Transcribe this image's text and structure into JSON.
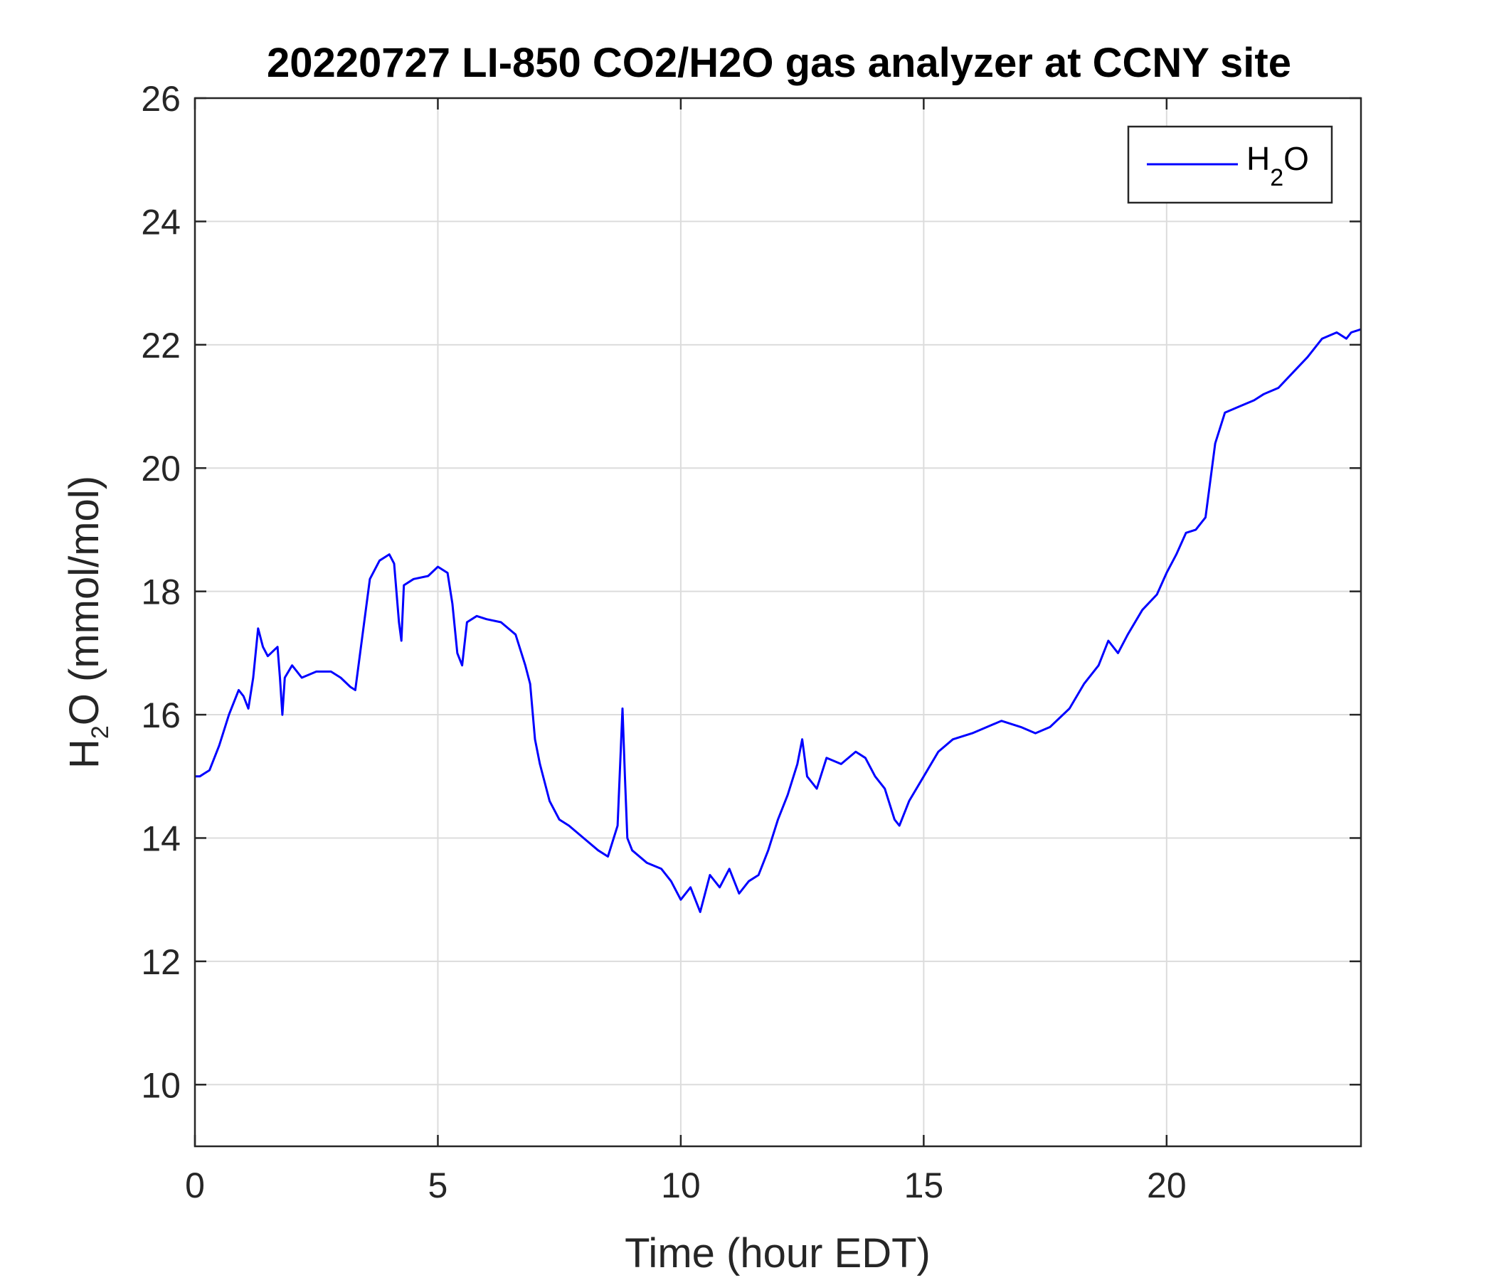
{
  "chart_data": {
    "type": "line",
    "title": "20220727 LI-850 CO2/H2O gas analyzer at CCNY site",
    "xlabel": "Time (hour EDT)",
    "ylabel": {
      "prefix": "H",
      "sub": "2",
      "suffix": "O (mmol/mol)"
    },
    "xlim": [
      0,
      24
    ],
    "ylim": [
      9,
      26
    ],
    "xticks": [
      0,
      5,
      10,
      15,
      20
    ],
    "yticks": [
      10,
      12,
      14,
      16,
      18,
      20,
      22,
      24,
      26
    ],
    "grid": true,
    "legend": {
      "placement": "top-right"
    },
    "series": [
      {
        "name": {
          "prefix": "H",
          "sub": "2",
          "suffix": "O"
        },
        "color": "#0000ff",
        "x": [
          0,
          0.1,
          0.2,
          0.3,
          0.5,
          0.7,
          0.9,
          1.0,
          1.1,
          1.2,
          1.3,
          1.4,
          1.5,
          1.7,
          1.75,
          1.8,
          1.85,
          2.0,
          2.2,
          2.5,
          2.8,
          3.0,
          3.2,
          3.3,
          3.4,
          3.6,
          3.8,
          4.0,
          4.1,
          4.2,
          4.25,
          4.3,
          4.5,
          4.8,
          5.0,
          5.2,
          5.3,
          5.4,
          5.5,
          5.6,
          5.8,
          6.0,
          6.3,
          6.6,
          6.8,
          6.9,
          7.0,
          7.1,
          7.3,
          7.5,
          7.7,
          8.0,
          8.3,
          8.5,
          8.7,
          8.8,
          8.85,
          8.9,
          9.0,
          9.3,
          9.6,
          9.8,
          10.0,
          10.2,
          10.4,
          10.6,
          10.8,
          11.0,
          11.2,
          11.4,
          11.6,
          11.8,
          12.0,
          12.2,
          12.4,
          12.5,
          12.6,
          12.8,
          13.0,
          13.3,
          13.6,
          13.8,
          14.0,
          14.2,
          14.4,
          14.5,
          14.7,
          15.0,
          15.3,
          15.6,
          16.0,
          16.3,
          16.6,
          17.0,
          17.3,
          17.6,
          18.0,
          18.3,
          18.6,
          18.8,
          19.0,
          19.2,
          19.5,
          19.8,
          20.0,
          20.2,
          20.4,
          20.6,
          20.8,
          21.0,
          21.2,
          21.5,
          21.8,
          22.0,
          22.3,
          22.6,
          22.9,
          23.2,
          23.5,
          23.7,
          23.8,
          24.0
        ],
        "values": [
          15.0,
          15.0,
          15.05,
          15.1,
          15.5,
          16.0,
          16.4,
          16.3,
          16.1,
          16.6,
          17.4,
          17.1,
          16.95,
          17.1,
          16.6,
          16.0,
          16.6,
          16.8,
          16.6,
          16.7,
          16.7,
          16.6,
          16.45,
          16.4,
          17.0,
          18.2,
          18.5,
          18.6,
          18.45,
          17.5,
          17.2,
          18.1,
          18.2,
          18.25,
          18.4,
          18.3,
          17.8,
          17.0,
          16.8,
          17.5,
          17.6,
          17.55,
          17.5,
          17.3,
          16.8,
          16.5,
          15.6,
          15.2,
          14.6,
          14.3,
          14.2,
          14.0,
          13.8,
          13.7,
          14.2,
          16.1,
          15.0,
          14.0,
          13.8,
          13.6,
          13.5,
          13.3,
          13.0,
          13.2,
          12.8,
          13.4,
          13.2,
          13.5,
          13.1,
          13.3,
          13.4,
          13.8,
          14.3,
          14.7,
          15.2,
          15.6,
          15.0,
          14.8,
          15.3,
          15.2,
          15.4,
          15.3,
          15.0,
          14.8,
          14.3,
          14.2,
          14.6,
          15.0,
          15.4,
          15.6,
          15.7,
          15.8,
          15.9,
          15.8,
          15.7,
          15.8,
          16.1,
          16.5,
          16.8,
          17.2,
          17.0,
          17.3,
          17.7,
          17.95,
          18.3,
          18.6,
          18.95,
          19.0,
          19.2,
          20.4,
          20.9,
          21.0,
          21.1,
          21.2,
          21.3,
          21.55,
          21.8,
          22.1,
          22.2,
          22.1,
          22.2,
          22.25
        ]
      }
    ]
  }
}
